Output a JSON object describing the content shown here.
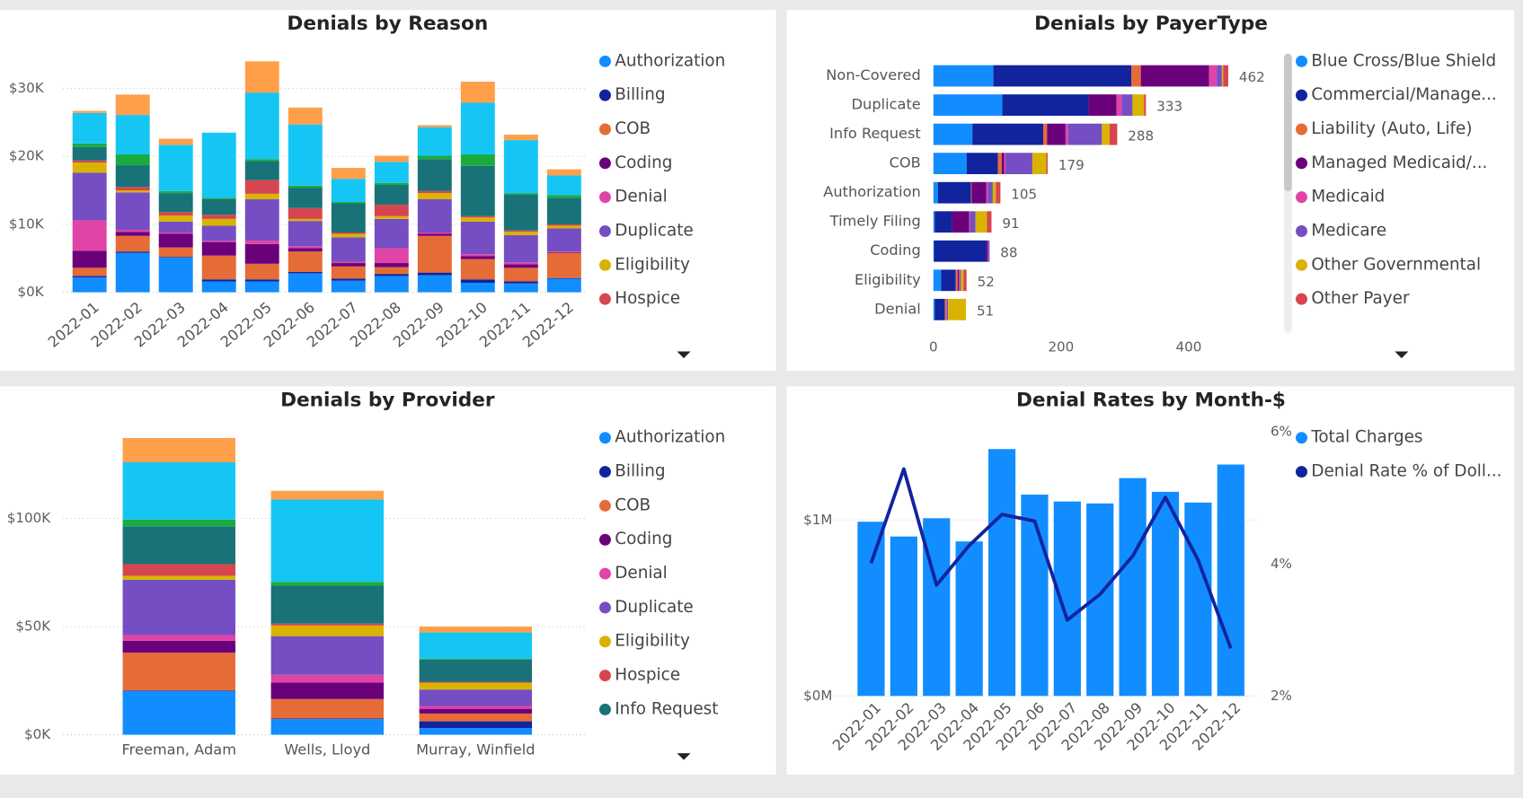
{
  "chart_data": [
    {
      "type": "bar",
      "stacked": true,
      "title": "Denials by Reason",
      "categories": [
        "2022-01",
        "2022-02",
        "2022-03",
        "2022-04",
        "2022-05",
        "2022-06",
        "2022-07",
        "2022-08",
        "2022-09",
        "2022-10",
        "2022-11",
        "2022-12"
      ],
      "ylim": [
        0,
        35000
      ],
      "yticks": [
        {
          "value": 0,
          "label": "$0K"
        },
        {
          "value": 10000,
          "label": "$10K"
        },
        {
          "value": 20000,
          "label": "$20K"
        },
        {
          "value": 30000,
          "label": "$30K"
        }
      ],
      "grid": true,
      "series": [
        {
          "name": "Authorization",
          "color": "#118DFF",
          "values": [
            2200,
            5800,
            5100,
            1600,
            1600,
            2800,
            1700,
            2400,
            2500,
            1400,
            1300,
            2000
          ]
        },
        {
          "name": "Billing",
          "color": "#12239E",
          "values": [
            200,
            200,
            100,
            300,
            300,
            200,
            300,
            300,
            400,
            500,
            300,
            100
          ]
        },
        {
          "name": "COB",
          "color": "#E66C37",
          "values": [
            1200,
            2300,
            1400,
            3500,
            2300,
            3000,
            1800,
            1000,
            5400,
            3000,
            2000,
            3700
          ]
        },
        {
          "name": "Coding",
          "color": "#6B007B",
          "values": [
            2500,
            600,
            2000,
            2000,
            2900,
            500,
            500,
            600,
            300,
            400,
            500,
            100
          ]
        },
        {
          "name": "Denial",
          "color": "#E044A7",
          "values": [
            4500,
            300,
            200,
            200,
            500,
            300,
            200,
            2200,
            200,
            300,
            300,
            100
          ]
        },
        {
          "name": "Duplicate",
          "color": "#744EC2",
          "values": [
            7000,
            5500,
            1600,
            2200,
            6100,
            3700,
            3600,
            4300,
            4900,
            4800,
            4000,
            3400
          ]
        },
        {
          "name": "Eligibility",
          "color": "#D9B300",
          "values": [
            1500,
            300,
            900,
            1000,
            800,
            300,
            500,
            400,
            900,
            600,
            500,
            400
          ]
        },
        {
          "name": "Hospice",
          "color": "#D64550",
          "values": [
            300,
            500,
            500,
            600,
            2000,
            1600,
            200,
            1700,
            300,
            200,
            200,
            200
          ]
        },
        {
          "color": "#197278",
          "values": [
            2000,
            3200,
            2800,
            2300,
            2800,
            3000,
            4300,
            2900,
            4700,
            7400,
            5300,
            3900
          ]
        },
        {
          "color": "#1AAB40",
          "values": [
            500,
            1600,
            300,
            200,
            300,
            300,
            200,
            300,
            500,
            1700,
            200,
            400
          ]
        },
        {
          "color": "#15C6F4",
          "values": [
            4500,
            5800,
            6800,
            9600,
            9800,
            9000,
            3400,
            3100,
            4200,
            7600,
            7800,
            2900
          ]
        },
        {
          "color": "#FF9F4A",
          "values": [
            300,
            3000,
            900,
            0,
            4600,
            2500,
            1600,
            900,
            300,
            3100,
            800,
            900
          ]
        }
      ]
    },
    {
      "type": "barh",
      "stacked": true,
      "title": "Denials by PayerType",
      "categories": [
        "Non-Covered",
        "Duplicate",
        "Info Request",
        "COB",
        "Authorization",
        "Timely Filing",
        "Coding",
        "Eligibility",
        "Denial"
      ],
      "xlim": [
        0,
        500
      ],
      "xticks": [
        0,
        200,
        400
      ],
      "grid": false,
      "totals": [
        462,
        333,
        288,
        179,
        105,
        91,
        88,
        52,
        51
      ],
      "series": [
        {
          "name": "Blue Cross/Blue Shield",
          "color": "#118DFF",
          "values": [
            94,
            108,
            61,
            52,
            7,
            2,
            1,
            12,
            2
          ]
        },
        {
          "name": "Commercial/Manage...",
          "color": "#12239E",
          "values": [
            216,
            135,
            111,
            49,
            52,
            27,
            81,
            23,
            16
          ]
        },
        {
          "name": "Liability (Auto, Life)",
          "color": "#E66C37",
          "values": [
            15,
            0,
            6,
            6,
            1,
            0,
            0,
            3,
            2
          ]
        },
        {
          "name": "Managed Medicaid/...",
          "color": "#6B007B",
          "values": [
            107,
            44,
            29,
            4,
            23,
            27,
            3,
            2,
            0
          ]
        },
        {
          "name": "Medicaid",
          "color": "#E044A7",
          "values": [
            12,
            8,
            4,
            2,
            2,
            1,
            0,
            1,
            1
          ]
        },
        {
          "name": "Medicare",
          "color": "#744EC2",
          "values": [
            8,
            17,
            53,
            42,
            8,
            9,
            3,
            2,
            2
          ]
        },
        {
          "name": "Other Governmental",
          "color": "#D9B300",
          "values": [
            2,
            18,
            12,
            22,
            5,
            18,
            0,
            4,
            28
          ]
        },
        {
          "name": "Other Payer",
          "color": "#D64550",
          "values": [
            8,
            3,
            12,
            2,
            7,
            7,
            0,
            5,
            0
          ]
        }
      ]
    },
    {
      "type": "bar",
      "stacked": true,
      "title": "Denials by Provider",
      "categories": [
        "Freeman, Adam",
        "Wells, Lloyd",
        "Murray, Winfield"
      ],
      "ylim": [
        0,
        140000
      ],
      "yticks": [
        {
          "value": 0,
          "label": "$0K"
        },
        {
          "value": 50000,
          "label": "$50K"
        },
        {
          "value": 100000,
          "label": "$100K"
        }
      ],
      "grid": true,
      "series": [
        {
          "name": "Authorization",
          "color": "#118DFF",
          "values": [
            20200,
            7200,
            3100
          ]
        },
        {
          "name": "Billing",
          "color": "#12239E",
          "values": [
            300,
            300,
            3100
          ]
        },
        {
          "name": "COB",
          "color": "#E66C37",
          "values": [
            17500,
            9000,
            3600
          ]
        },
        {
          "name": "Coding",
          "color": "#6B007B",
          "values": [
            5400,
            7600,
            2200
          ]
        },
        {
          "name": "Denial",
          "color": "#E044A7",
          "values": [
            2700,
            3600,
            1300
          ]
        },
        {
          "name": "Duplicate",
          "color": "#744EC2",
          "values": [
            25600,
            17900,
            7600
          ]
        },
        {
          "name": "Eligibility",
          "color": "#D9B300",
          "values": [
            1800,
            4900,
            3100
          ]
        },
        {
          "name": "Hospice",
          "color": "#D64550",
          "values": [
            5400,
            900,
            500
          ]
        },
        {
          "name": "Info Request",
          "color": "#197278",
          "values": [
            17500,
            17500,
            10300
          ]
        },
        {
          "color": "#1AAB40",
          "values": [
            3100,
            1800,
            400
          ]
        },
        {
          "color": "#15C6F4",
          "values": [
            26500,
            38100,
            12100
          ]
        },
        {
          "color": "#FF9F4A",
          "values": [
            11200,
            4000,
            2700
          ]
        }
      ]
    },
    {
      "type": "combo",
      "title": "Denial Rates by Month-$",
      "categories": [
        "2022-01",
        "2022-02",
        "2022-03",
        "2022-04",
        "2022-05",
        "2022-06",
        "2022-07",
        "2022-08",
        "2022-09",
        "2022-10",
        "2022-11",
        "2022-12"
      ],
      "ylim": [
        0,
        1500000
      ],
      "yticks": [
        {
          "value": 0,
          "label": "$0M"
        },
        {
          "value": 1000000,
          "label": "$1M"
        }
      ],
      "y2lim": [
        2,
        6
      ],
      "y2ticks": [
        {
          "value": 2,
          "label": "2%"
        },
        {
          "value": 4,
          "label": "4%"
        },
        {
          "value": 6,
          "label": "6%"
        }
      ],
      "grid": true,
      "series": [
        {
          "name": "Total Charges",
          "type": "bar",
          "color": "#118DFF",
          "values": [
            990000,
            906000,
            1010000,
            878000,
            1403000,
            1144000,
            1105000,
            1094000,
            1238000,
            1160000,
            1099000,
            1315000
          ]
        },
        {
          "name": "Denial Rate % of Doll...",
          "type": "line",
          "axis": "y2",
          "color": "#12239E",
          "values": [
            4.01,
            5.44,
            3.68,
            4.28,
            4.75,
            4.65,
            3.15,
            3.54,
            4.12,
            5.01,
            4.06,
            2.72
          ]
        }
      ]
    }
  ]
}
